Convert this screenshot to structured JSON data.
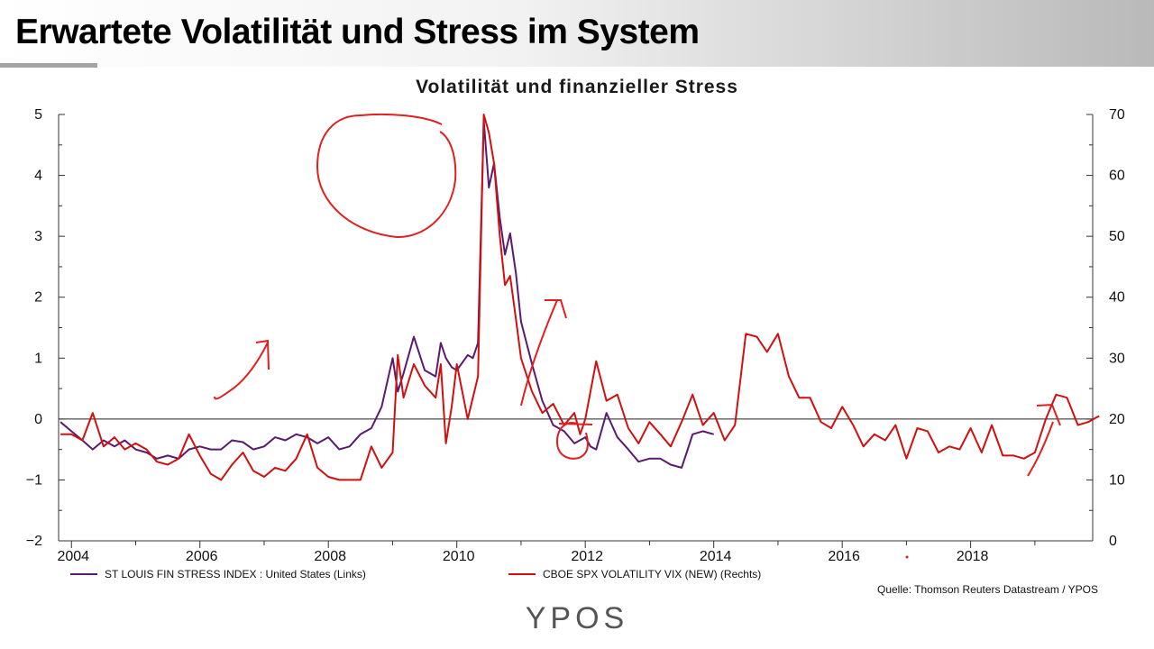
{
  "slide": {
    "title": "Erwartete Volatilität und Stress im System"
  },
  "source_note": "Quelle: Thomson Reuters Datastream / YPOS",
  "logo_text": "YPOS",
  "colors": {
    "stress_series": "#5a1a6e",
    "vix_series": "#d01010",
    "annotation": "#e02020"
  },
  "chart_data": {
    "type": "line",
    "title": "Volatilität und finanzieller Stress",
    "x_ticks": [
      "2004",
      "2006",
      "2008",
      "2010",
      "2012",
      "2014",
      "2016",
      "2018"
    ],
    "x_range": [
      2003.8,
      2019.9
    ],
    "y_left": {
      "range": [
        -2,
        5
      ],
      "ticks": [
        "−2",
        "−1",
        "0",
        "1",
        "2",
        "3",
        "4",
        "5"
      ]
    },
    "y_right": {
      "range": [
        0,
        70
      ],
      "ticks": [
        "0",
        "10",
        "20",
        "30",
        "40",
        "50",
        "60",
        "70"
      ]
    },
    "zero_line": true,
    "grid": false,
    "legend_position": "bottom",
    "series": [
      {
        "name": "ST LOUIS FIN STRESS INDEX : United States (Links)",
        "axis": "left",
        "points": [
          [
            2003.83,
            -0.05
          ],
          [
            2004.0,
            -0.2
          ],
          [
            2004.17,
            -0.35
          ],
          [
            2004.33,
            -0.5
          ],
          [
            2004.5,
            -0.35
          ],
          [
            2004.67,
            -0.45
          ],
          [
            2004.83,
            -0.35
          ],
          [
            2005.0,
            -0.5
          ],
          [
            2005.17,
            -0.55
          ],
          [
            2005.33,
            -0.65
          ],
          [
            2005.5,
            -0.6
          ],
          [
            2005.67,
            -0.65
          ],
          [
            2005.83,
            -0.5
          ],
          [
            2006.0,
            -0.45
          ],
          [
            2006.17,
            -0.5
          ],
          [
            2006.33,
            -0.5
          ],
          [
            2006.5,
            -0.35
          ],
          [
            2006.67,
            -0.38
          ],
          [
            2006.83,
            -0.5
          ],
          [
            2007.0,
            -0.45
          ],
          [
            2007.17,
            -0.3
          ],
          [
            2007.33,
            -0.35
          ],
          [
            2007.5,
            -0.25
          ],
          [
            2007.67,
            -0.3
          ],
          [
            2007.83,
            -0.4
          ],
          [
            2008.0,
            -0.3
          ],
          [
            2008.17,
            -0.5
          ],
          [
            2008.33,
            -0.45
          ],
          [
            2008.5,
            -0.25
          ],
          [
            2008.67,
            -0.15
          ],
          [
            2008.83,
            0.2
          ],
          [
            2009.0,
            1.0
          ],
          [
            2009.08,
            0.45
          ],
          [
            2009.17,
            0.75
          ],
          [
            2009.33,
            1.35
          ],
          [
            2009.5,
            0.8
          ],
          [
            2009.67,
            0.7
          ],
          [
            2009.75,
            1.25
          ],
          [
            2009.83,
            1.0
          ],
          [
            2009.92,
            0.85
          ],
          [
            2010.0,
            0.8
          ],
          [
            2010.17,
            1.05
          ],
          [
            2010.25,
            1.0
          ],
          [
            2010.33,
            1.25
          ],
          [
            2010.42,
            4.9
          ],
          [
            2010.5,
            3.8
          ],
          [
            2010.58,
            4.2
          ],
          [
            2010.67,
            3.3
          ],
          [
            2010.75,
            2.7
          ],
          [
            2010.83,
            3.05
          ],
          [
            2010.92,
            2.4
          ],
          [
            2011.0,
            1.6
          ],
          [
            2011.17,
            0.9
          ],
          [
            2011.33,
            0.3
          ],
          [
            2011.5,
            -0.1
          ],
          [
            2011.67,
            -0.2
          ],
          [
            2011.83,
            -0.4
          ],
          [
            2012.0,
            -0.3
          ],
          [
            2012.08,
            -0.45
          ],
          [
            2012.17,
            -0.5
          ],
          [
            2012.33,
            0.1
          ],
          [
            2012.5,
            -0.3
          ],
          [
            2012.67,
            -0.5
          ],
          [
            2012.83,
            -0.7
          ],
          [
            2013.0,
            -0.65
          ],
          [
            2013.17,
            -0.65
          ],
          [
            2013.33,
            -0.75
          ],
          [
            2013.5,
            -0.8
          ],
          [
            2013.58,
            -0.55
          ],
          [
            2013.67,
            -0.25
          ],
          [
            2013.83,
            -0.2
          ],
          [
            2014.0,
            -0.25
          ]
        ]
      },
      {
        "name": "CBOE SPX VOLATILITY VIX (NEW) (Rechts)",
        "axis": "right",
        "points": [
          [
            2003.83,
            17.5
          ],
          [
            2004.0,
            17.5
          ],
          [
            2004.17,
            16.5
          ],
          [
            2004.33,
            21.0
          ],
          [
            2004.5,
            15.5
          ],
          [
            2004.67,
            17.0
          ],
          [
            2004.83,
            15.0
          ],
          [
            2005.0,
            16.0
          ],
          [
            2005.17,
            15.0
          ],
          [
            2005.33,
            13.0
          ],
          [
            2005.5,
            12.5
          ],
          [
            2005.67,
            13.5
          ],
          [
            2005.83,
            17.5
          ],
          [
            2006.0,
            14.0
          ],
          [
            2006.17,
            11.0
          ],
          [
            2006.33,
            10.0
          ],
          [
            2006.5,
            12.5
          ],
          [
            2006.67,
            14.5
          ],
          [
            2006.83,
            11.5
          ],
          [
            2007.0,
            10.5
          ],
          [
            2007.17,
            12.0
          ],
          [
            2007.33,
            11.5
          ],
          [
            2007.5,
            13.5
          ],
          [
            2007.67,
            17.5
          ],
          [
            2007.83,
            12.0
          ],
          [
            2008.0,
            10.5
          ],
          [
            2008.17,
            10.0
          ],
          [
            2008.33,
            10.0
          ],
          [
            2008.5,
            10.0
          ],
          [
            2008.67,
            15.5
          ],
          [
            2008.83,
            12.0
          ],
          [
            2009.0,
            14.5
          ],
          [
            2009.08,
            30.5
          ],
          [
            2009.17,
            23.5
          ],
          [
            2009.33,
            29.0
          ],
          [
            2009.5,
            25.5
          ],
          [
            2009.67,
            23.5
          ],
          [
            2009.75,
            29.0
          ],
          [
            2009.83,
            16.0
          ],
          [
            2009.92,
            22.0
          ],
          [
            2010.0,
            29.0
          ],
          [
            2010.17,
            20.0
          ],
          [
            2010.33,
            27.0
          ],
          [
            2010.42,
            70.0
          ],
          [
            2010.5,
            67.0
          ],
          [
            2010.58,
            62.0
          ],
          [
            2010.67,
            50.0
          ],
          [
            2010.75,
            42.0
          ],
          [
            2010.83,
            43.5
          ],
          [
            2010.92,
            36.5
          ],
          [
            2011.0,
            30.0
          ],
          [
            2011.17,
            24.5
          ],
          [
            2011.33,
            21.0
          ],
          [
            2011.5,
            22.5
          ],
          [
            2011.67,
            19.0
          ],
          [
            2011.83,
            21.0
          ],
          [
            2011.92,
            17.5
          ],
          [
            2012.0,
            20.0
          ],
          [
            2012.17,
            29.5
          ],
          [
            2012.33,
            23.0
          ],
          [
            2012.5,
            24.0
          ],
          [
            2012.67,
            18.5
          ],
          [
            2012.83,
            16.0
          ],
          [
            2013.0,
            19.5
          ],
          [
            2013.17,
            17.5
          ],
          [
            2013.33,
            15.5
          ],
          [
            2013.5,
            19.5
          ],
          [
            2013.67,
            24.0
          ],
          [
            2013.83,
            19.0
          ],
          [
            2014.0,
            21.0
          ],
          [
            2014.17,
            16.5
          ],
          [
            2014.33,
            19.0
          ],
          [
            2014.5,
            34.0
          ],
          [
            2014.67,
            33.5
          ],
          [
            2014.83,
            31.0
          ],
          [
            2015.0,
            34.0
          ],
          [
            2015.17,
            27.0
          ],
          [
            2015.33,
            23.5
          ],
          [
            2015.5,
            23.5
          ],
          [
            2015.67,
            19.5
          ],
          [
            2015.83,
            18.5
          ],
          [
            2016.0,
            22.0
          ],
          [
            2016.17,
            19.0
          ],
          [
            2016.33,
            15.5
          ],
          [
            2016.5,
            17.5
          ],
          [
            2016.67,
            16.5
          ],
          [
            2016.83,
            19.0
          ],
          [
            2017.0,
            13.5
          ],
          [
            2017.17,
            18.5
          ],
          [
            2017.33,
            18.0
          ],
          [
            2017.5,
            14.5
          ],
          [
            2017.67,
            15.5
          ],
          [
            2017.83,
            15.0
          ],
          [
            2018.0,
            18.5
          ],
          [
            2018.17,
            14.5
          ],
          [
            2018.33,
            19.0
          ],
          [
            2018.5,
            14.0
          ],
          [
            2018.67,
            14.0
          ],
          [
            2018.83,
            13.5
          ],
          [
            2019.0,
            14.5
          ],
          [
            2019.17,
            20.0
          ],
          [
            2019.33,
            24.0
          ],
          [
            2019.5,
            23.5
          ],
          [
            2019.67,
            19.0
          ],
          [
            2019.83,
            19.5
          ],
          [
            2020.0,
            20.5
          ]
        ]
      }
    ]
  }
}
